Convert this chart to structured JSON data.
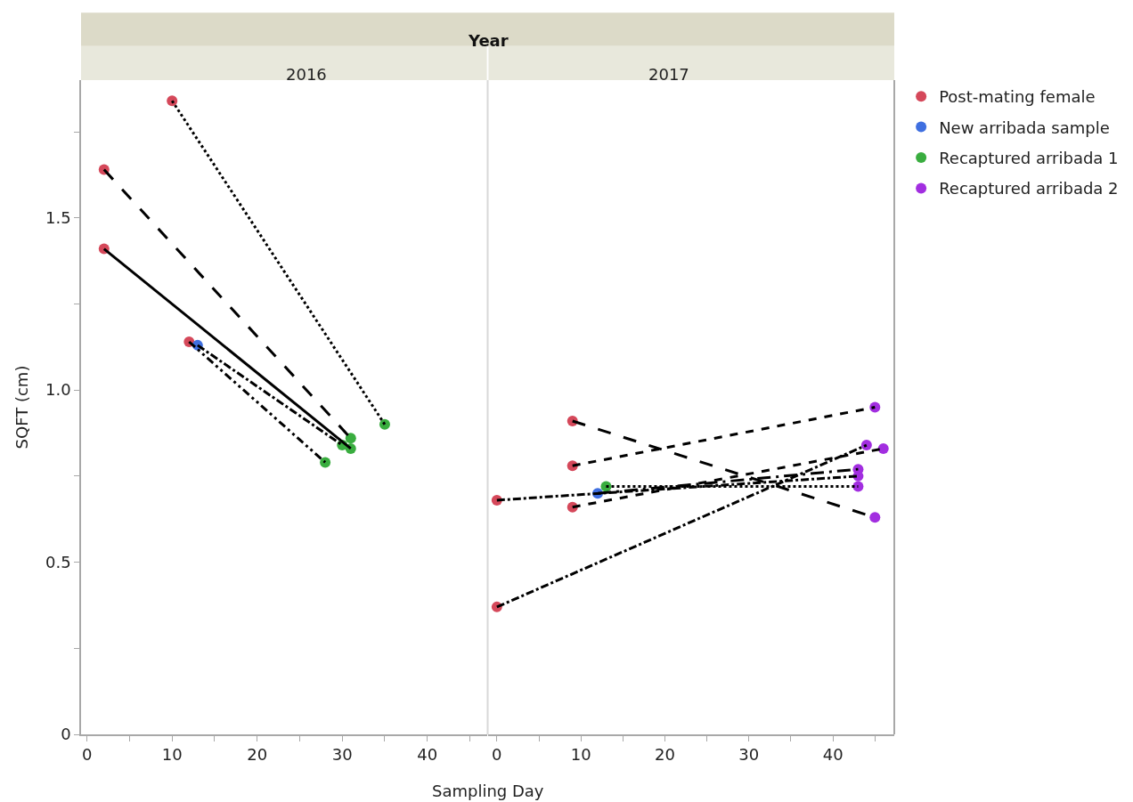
{
  "chart_data": [
    {
      "type": "scatter",
      "title": "2016",
      "subtitle": "Year",
      "legend": "right",
      "xlabel": "Sampling Day",
      "ylabel": "SQFT (cm)",
      "xlim": [
        -0.7,
        47
      ],
      "xticks": [
        0,
        {
          "value": 5,
          "label": null
        },
        10,
        {
          "value": 15,
          "label": null
        },
        20,
        {
          "value": 25,
          "label": null
        },
        30,
        {
          "value": 35,
          "label": null
        },
        40,
        {
          "value": 45,
          "label": null
        }
      ],
      "ylim": [
        0,
        1.9
      ],
      "yticks": [
        0,
        {
          "value": 0.25,
          "label": null
        },
        {
          "value": 0.5,
          "label": "0.5"
        },
        {
          "value": 0.75,
          "label": null
        },
        {
          "value": 1.0,
          "label": "1.0"
        },
        {
          "value": 1.25,
          "label": null
        },
        1.5,
        {
          "value": 1.75,
          "label": null
        }
      ],
      "series": [
        {
          "name": "Post-mating female",
          "marker": "circle",
          "color": "#d5485a",
          "x": [
            2,
            2,
            10,
            12
          ],
          "values": [
            1.41,
            1.64,
            1.84,
            1.14
          ]
        },
        {
          "name": "New arribada sample",
          "marker": "circle",
          "color": "#3f6fe0",
          "x": [
            13
          ],
          "values": [
            1.13
          ]
        },
        {
          "name": "Recaptured arribada 1",
          "marker": "circle",
          "color": "#39ad3f",
          "x": [
            28,
            31,
            31,
            30,
            35
          ],
          "values": [
            0.79,
            0.83,
            0.86,
            0.84,
            0.9
          ]
        },
        {
          "type": "line",
          "marker": "none",
          "color": "#000000",
          "line_style": "solid",
          "x": [
            2,
            31
          ],
          "values": [
            1.41,
            0.83
          ]
        },
        {
          "type": "line",
          "marker": "none",
          "color": "#000000",
          "line_style": "longdash",
          "x": [
            2,
            31
          ],
          "values": [
            1.64,
            0.86
          ]
        },
        {
          "type": "line",
          "marker": "none",
          "color": "#000000",
          "line_style": "dotted",
          "x": [
            10,
            35
          ],
          "values": [
            1.84,
            0.9
          ]
        },
        {
          "type": "line",
          "marker": "none",
          "color": "#000000",
          "line_style": "dashdotdot",
          "x": [
            12,
            28
          ],
          "values": [
            1.14,
            0.79
          ]
        },
        {
          "type": "line",
          "marker": "none",
          "color": "#000000",
          "line_style": "dashdot",
          "x": [
            13,
            30
          ],
          "values": [
            1.13,
            0.84
          ]
        }
      ]
    },
    {
      "type": "scatter",
      "title": "2017",
      "legend": "right",
      "tick_labels": "x",
      "xlim": [
        -1,
        47.3
      ],
      "xticks": [
        0,
        {
          "value": 5,
          "label": null
        },
        10,
        {
          "value": 15,
          "label": null
        },
        20,
        {
          "value": 25,
          "label": null
        },
        30,
        {
          "value": 35,
          "label": null
        },
        40,
        {
          "value": 45,
          "label": null
        }
      ],
      "ylim": [
        0,
        1.9
      ],
      "series": [
        {
          "name": "Post-mating female",
          "marker": "circle",
          "color": "#d5485a",
          "x": [
            0,
            0,
            9,
            9,
            9
          ],
          "values": [
            0.68,
            0.37,
            0.91,
            0.78,
            0.66
          ]
        },
        {
          "name": "New arribada sample",
          "marker": "circle",
          "color": "#3f6fe0",
          "x": [
            12
          ],
          "values": [
            0.7
          ]
        },
        {
          "name": "Recaptured arribada 1",
          "marker": "circle",
          "color": "#39ad3f",
          "x": [
            13
          ],
          "values": [
            0.72
          ]
        },
        {
          "name": "Recaptured arribada 2",
          "marker": "circle",
          "color": "#a22ee0",
          "x": [
            45,
            44,
            46,
            43,
            43,
            43,
            45
          ],
          "values": [
            0.95,
            0.84,
            0.83,
            0.77,
            0.75,
            0.72,
            0.63
          ]
        },
        {
          "type": "line",
          "marker": "none",
          "color": "#000000",
          "line_style": "longdash",
          "x": [
            9,
            45
          ],
          "values": [
            0.91,
            0.63
          ]
        },
        {
          "type": "line",
          "marker": "none",
          "color": "#000000",
          "line_style": "dashed",
          "x": [
            9,
            45
          ],
          "values": [
            0.78,
            0.95
          ]
        },
        {
          "type": "line",
          "marker": "none",
          "color": "#000000",
          "line_style": "dashdot",
          "x": [
            0,
            44
          ],
          "values": [
            0.37,
            0.84
          ]
        },
        {
          "type": "line",
          "marker": "none",
          "color": "#000000",
          "line_style": "dashed",
          "x": [
            9,
            46
          ],
          "values": [
            0.66,
            0.83
          ]
        },
        {
          "type": "line",
          "marker": "none",
          "color": "#000000",
          "line_style": "dashdot",
          "x": [
            0,
            43
          ],
          "values": [
            0.68,
            0.75
          ]
        },
        {
          "type": "line",
          "marker": "none",
          "color": "#000000",
          "line_style": "longdashdot",
          "x": [
            12,
            43
          ],
          "values": [
            0.7,
            0.77
          ]
        },
        {
          "type": "line",
          "marker": "none",
          "color": "#000000",
          "line_style": "dotted",
          "x": [
            13,
            43
          ],
          "values": [
            0.72,
            0.72
          ]
        }
      ]
    }
  ]
}
